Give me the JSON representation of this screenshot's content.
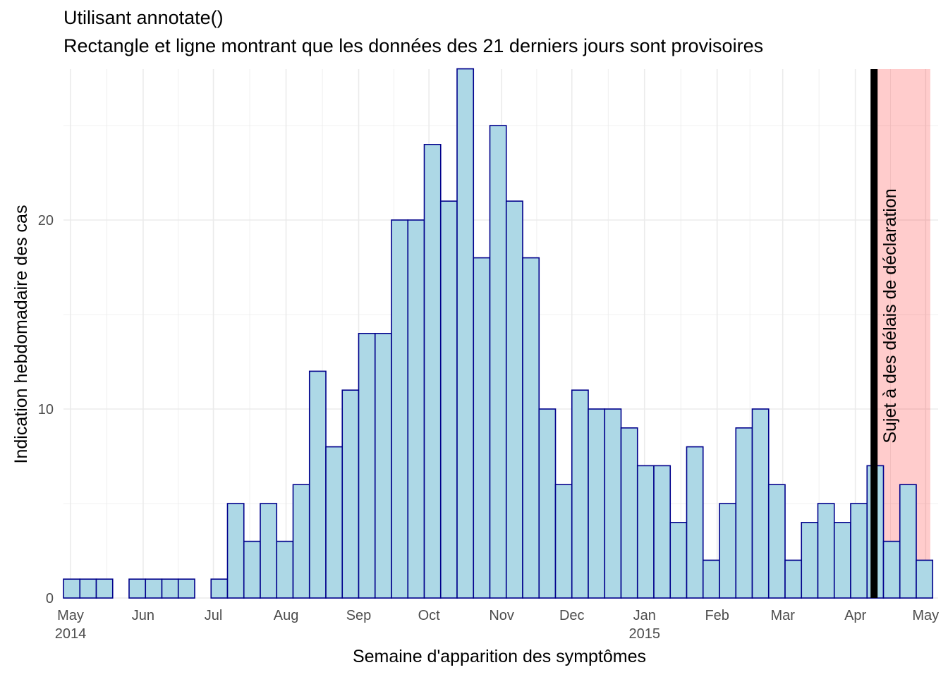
{
  "chart_data": {
    "type": "bar",
    "title": "Utilisant annotate()",
    "subtitle": "Rectangle et ligne montrant que les données des 21 derniers jours sont provisoires",
    "xlabel": "Semaine d'apparition des symptômes",
    "ylabel": "Indication hebdomadaire des cas",
    "x_start": "2014-04-28",
    "bin_days": 7,
    "values": [
      1,
      1,
      1,
      0,
      1,
      1,
      1,
      1,
      0,
      1,
      5,
      3,
      5,
      3,
      6,
      12,
      8,
      11,
      14,
      14,
      20,
      20,
      24,
      21,
      28,
      18,
      25,
      21,
      18,
      10,
      6,
      11,
      10,
      10,
      9,
      7,
      7,
      4,
      8,
      2,
      5,
      9,
      10,
      6,
      2,
      4,
      5,
      4,
      5,
      7,
      3,
      6,
      2
    ],
    "x_ticks": [
      {
        "date": "2014-05-01",
        "label": "May",
        "sublabel": "2014"
      },
      {
        "date": "2014-06-01",
        "label": "Jun",
        "sublabel": ""
      },
      {
        "date": "2014-07-01",
        "label": "Jul",
        "sublabel": ""
      },
      {
        "date": "2014-08-01",
        "label": "Aug",
        "sublabel": ""
      },
      {
        "date": "2014-09-01",
        "label": "Sep",
        "sublabel": ""
      },
      {
        "date": "2014-10-01",
        "label": "Oct",
        "sublabel": ""
      },
      {
        "date": "2014-11-01",
        "label": "Nov",
        "sublabel": ""
      },
      {
        "date": "2014-12-01",
        "label": "Dec",
        "sublabel": ""
      },
      {
        "date": "2015-01-01",
        "label": "Jan",
        "sublabel": "2015"
      },
      {
        "date": "2015-02-01",
        "label": "Feb",
        "sublabel": ""
      },
      {
        "date": "2015-03-01",
        "label": "Mar",
        "sublabel": ""
      },
      {
        "date": "2015-04-01",
        "label": "Apr",
        "sublabel": ""
      },
      {
        "date": "2015-05-01",
        "label": "May",
        "sublabel": ""
      }
    ],
    "y_ticks": [
      0,
      10,
      20
    ],
    "ylim": [
      0,
      28
    ],
    "grid": true,
    "annotation": {
      "line_date": "2015-04-09",
      "rect_start": "2015-04-09",
      "rect_end": "2015-05-03",
      "label": "Sujet à des délais de déclaration",
      "rect_color": "#ff0000",
      "rect_alpha": 0.2,
      "line_color": "#000000"
    },
    "bar_fill": "#add8e6",
    "bar_outline": "#00008b"
  }
}
